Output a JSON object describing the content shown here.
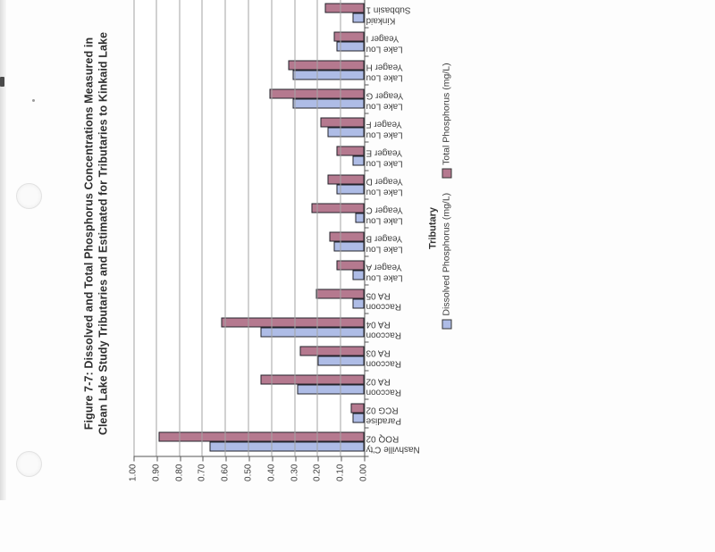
{
  "figure": {
    "title_line1": "Figure 7-7: Dissolved and Total Phosphorus Concentrations Measured in",
    "title_line2": "Clean Lake Study Tributaries and Estimated for Tributaries to Kinkaid Lake"
  },
  "chart_data": {
    "type": "bar",
    "title": "Figure 7-7: Dissolved and Total Phosphorus Concentrations Measured in Clean Lake Study Tributaries and Estimated for Tributaries to Kinkaid Lake",
    "xlabel": "Tributary",
    "ylabel": "",
    "ylim": [
      0,
      1.0
    ],
    "grid": true,
    "legend_position": "bottom",
    "axis_tick_labels": [
      "0.00",
      "0.10",
      "0.20",
      "0.30",
      "0.40",
      "0.50",
      "0.60",
      "0.70",
      "0.80",
      "0.90",
      "1.00"
    ],
    "categories": [
      [
        "Nashville C'ty",
        "ROQ 02"
      ],
      [
        "Paradise",
        "RCG 02"
      ],
      [
        "Raccoon",
        "RA 02"
      ],
      [
        "Raccoon",
        "RA 03"
      ],
      [
        "Raccoon",
        "RA 04"
      ],
      [
        "Raccoon",
        "RA 05"
      ],
      [
        "Lake Lou",
        "Yeager A"
      ],
      [
        "Lake Lou",
        "Yeager B"
      ],
      [
        "Lake Lou",
        "Yeager C"
      ],
      [
        "Lake Lou",
        "Yeager D"
      ],
      [
        "Lake Lou",
        "Yeager E"
      ],
      [
        "Lake Lou",
        "Yeager F"
      ],
      [
        "Lake Lou",
        "Yeager G"
      ],
      [
        "Lake Lou",
        "Yeager H"
      ],
      [
        "Lake Lou",
        "Yeager I"
      ],
      [
        "Kinkaid",
        "Subbasin 1"
      ]
    ],
    "series": [
      {
        "name": "Dissolved Phosphorus (mg/L)",
        "color": "#aebce6",
        "values": [
          0.67,
          0.05,
          0.29,
          0.2,
          0.45,
          0.05,
          0.05,
          0.13,
          0.04,
          0.12,
          0.05,
          0.16,
          0.31,
          0.31,
          0.12,
          0.05
        ]
      },
      {
        "name": "Total Phosphorus (mg/L)",
        "color": "#b5798f",
        "values": [
          0.89,
          0.06,
          0.45,
          0.28,
          0.62,
          0.21,
          0.12,
          0.15,
          0.23,
          0.16,
          0.12,
          0.19,
          0.41,
          0.33,
          0.13,
          0.17
        ]
      }
    ]
  }
}
